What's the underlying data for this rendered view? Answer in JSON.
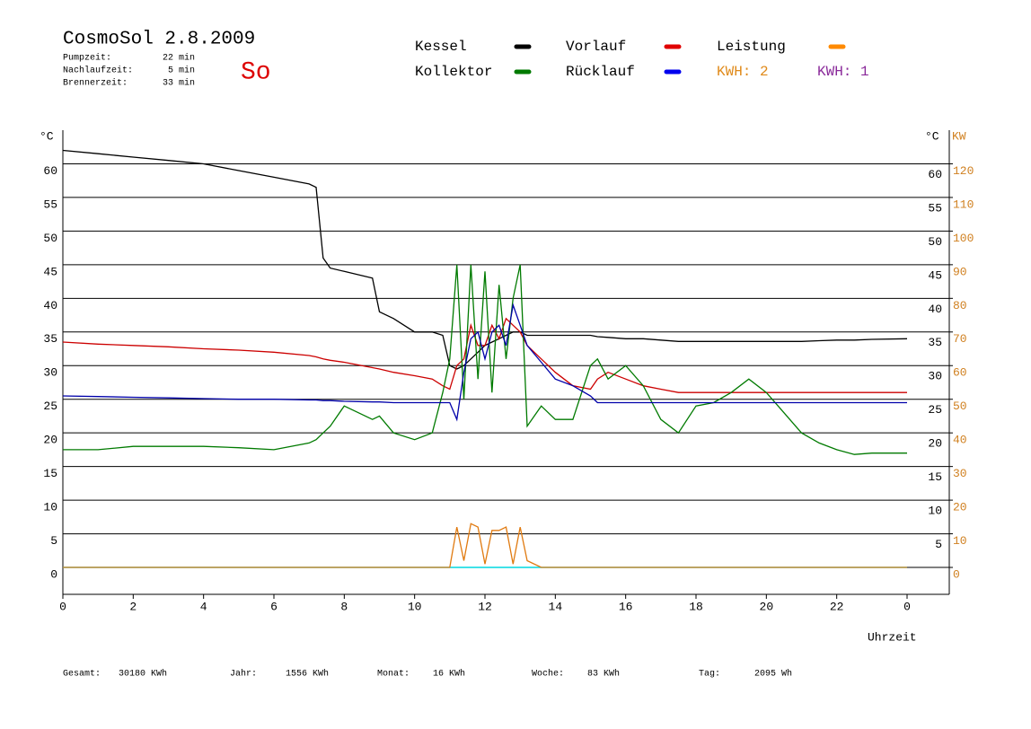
{
  "chart_data": {
    "type": "line",
    "title": "CosmoSol 2.8.2009",
    "day": "So",
    "info": [
      {
        "label": "Pumpzeit:",
        "value": "22 min"
      },
      {
        "label": "Nachlaufzeit:",
        "value": "5 min"
      },
      {
        "label": "Brennerzeit:",
        "value": "33 min"
      }
    ],
    "extra_legend": [
      {
        "text": "KWH: 2",
        "color": "#e08a1a"
      },
      {
        "text": "KWH: 1",
        "color": "#8a2a9a"
      }
    ],
    "y_label": "°C",
    "y2_label": "KW",
    "x_label": "Uhrzeit",
    "footer": [
      {
        "label": "Gesamt:",
        "value": "30180 KWh"
      },
      {
        "label": "Jahr:",
        "value": "1556 KWh"
      },
      {
        "label": "Monat:",
        "value": "16 KWh"
      },
      {
        "label": "Woche:",
        "value": "83 KWh"
      },
      {
        "label": "Tag:",
        "value": "2095 Wh"
      }
    ],
    "x": [
      0,
      1,
      2,
      3,
      4,
      5,
      6,
      7,
      7.2,
      7.4,
      7.6,
      8,
      8.8,
      9,
      9.4,
      10,
      10.5,
      10.8,
      11,
      11.2,
      11.4,
      11.6,
      11.8,
      12,
      12.2,
      12.4,
      12.6,
      12.8,
      13,
      13.2,
      13.6,
      14,
      14.5,
      15,
      15.2,
      15.5,
      16,
      16.5,
      17,
      17.5,
      18,
      18.5,
      19,
      19.5,
      20,
      20.5,
      21,
      21.5,
      22,
      22.5,
      23,
      24
    ],
    "xlim": [
      0,
      25.2
    ],
    "xticks": [
      0,
      2,
      4,
      6,
      8,
      10,
      12,
      14,
      16,
      18,
      20,
      22,
      {
        "value": 24,
        "label": "0"
      }
    ],
    "ylim": [
      -4,
      65
    ],
    "yticks": [
      0,
      5,
      10,
      15,
      20,
      25,
      30,
      35,
      40,
      45,
      50,
      55,
      60
    ],
    "y2lim": [
      -8,
      130
    ],
    "y2ticks": [
      0,
      10,
      20,
      30,
      40,
      50,
      60,
      70,
      80,
      90,
      100,
      110,
      120
    ],
    "grid": true,
    "series": [
      {
        "name": "Kessel",
        "color": "#000000",
        "values": [
          62,
          61.5,
          61,
          60.5,
          60,
          59,
          58,
          57,
          56.5,
          46,
          44.5,
          44,
          43,
          38,
          37,
          35,
          35,
          34.5,
          30,
          29.5,
          30,
          31,
          32,
          33,
          33.5,
          34,
          34.5,
          35,
          35,
          34.5,
          34.5,
          34.5,
          34.5,
          34.5,
          34.3,
          34.2,
          34,
          34,
          33.8,
          33.6,
          33.6,
          33.6,
          33.6,
          33.6,
          33.6,
          33.6,
          33.6,
          33.7,
          33.8,
          33.8,
          33.9,
          34
        ]
      },
      {
        "name": "Vorlauf",
        "color": "#cc0000",
        "legend_color": "#e00000",
        "values": [
          33.5,
          33.2,
          33,
          32.8,
          32.5,
          32.3,
          32,
          31.5,
          31.3,
          31,
          30.8,
          30.5,
          29.7,
          29.5,
          29,
          28.5,
          28,
          27,
          26.5,
          30,
          31,
          36,
          33,
          33,
          36,
          34,
          37,
          36,
          35,
          33,
          31,
          29,
          27,
          26.5,
          28,
          29,
          28,
          27,
          26.5,
          26,
          26,
          26,
          26,
          26,
          26,
          26,
          26,
          26,
          26,
          26,
          26,
          26
        ]
      },
      {
        "name": "Leistung",
        "color": "#e07a10",
        "legend_color": "#ff8a00",
        "axis": "y2",
        "values": [
          0,
          0,
          0,
          0,
          0,
          0,
          0,
          0,
          0,
          0,
          0,
          0,
          0,
          0,
          0,
          0,
          0,
          0,
          0,
          12,
          2,
          13,
          12,
          1,
          11,
          11,
          12,
          1,
          12,
          2,
          0,
          0,
          0,
          0,
          0,
          0,
          0,
          0,
          0,
          0,
          0,
          0,
          0,
          0,
          0,
          0,
          0,
          0,
          0,
          0,
          0,
          0
        ]
      },
      {
        "name": "Kollektor",
        "color": "#007a00",
        "values": [
          17.5,
          17.5,
          18,
          18,
          18,
          17.8,
          17.5,
          18.5,
          19,
          20,
          21,
          24,
          22,
          22.5,
          20,
          19,
          20,
          26,
          31,
          45,
          25,
          45,
          28,
          44,
          26,
          42,
          31,
          40,
          45,
          21,
          24,
          22,
          22,
          30,
          31,
          28,
          30,
          27,
          22,
          20,
          24,
          24.5,
          26,
          28,
          26,
          23,
          20,
          18.5,
          17.5,
          16.8,
          17,
          17
        ]
      },
      {
        "name": "Rücklauf",
        "color": "#0000aa",
        "legend_color": "#0000ee",
        "values": [
          25.5,
          25.4,
          25.3,
          25.2,
          25.1,
          25,
          25,
          24.9,
          24.9,
          24.8,
          24.8,
          24.7,
          24.6,
          24.6,
          24.5,
          24.5,
          24.5,
          24.5,
          24.5,
          22,
          29,
          34,
          35,
          31,
          35,
          36,
          33,
          39,
          36,
          33,
          30.5,
          28,
          27,
          25.5,
          24.5,
          24.5,
          24.5,
          24.5,
          24.5,
          24.5,
          24.5,
          24.5,
          24.5,
          24.5,
          24.5,
          24.5,
          24.5,
          24.5,
          24.5,
          24.5,
          24.5,
          24.5
        ]
      }
    ]
  }
}
